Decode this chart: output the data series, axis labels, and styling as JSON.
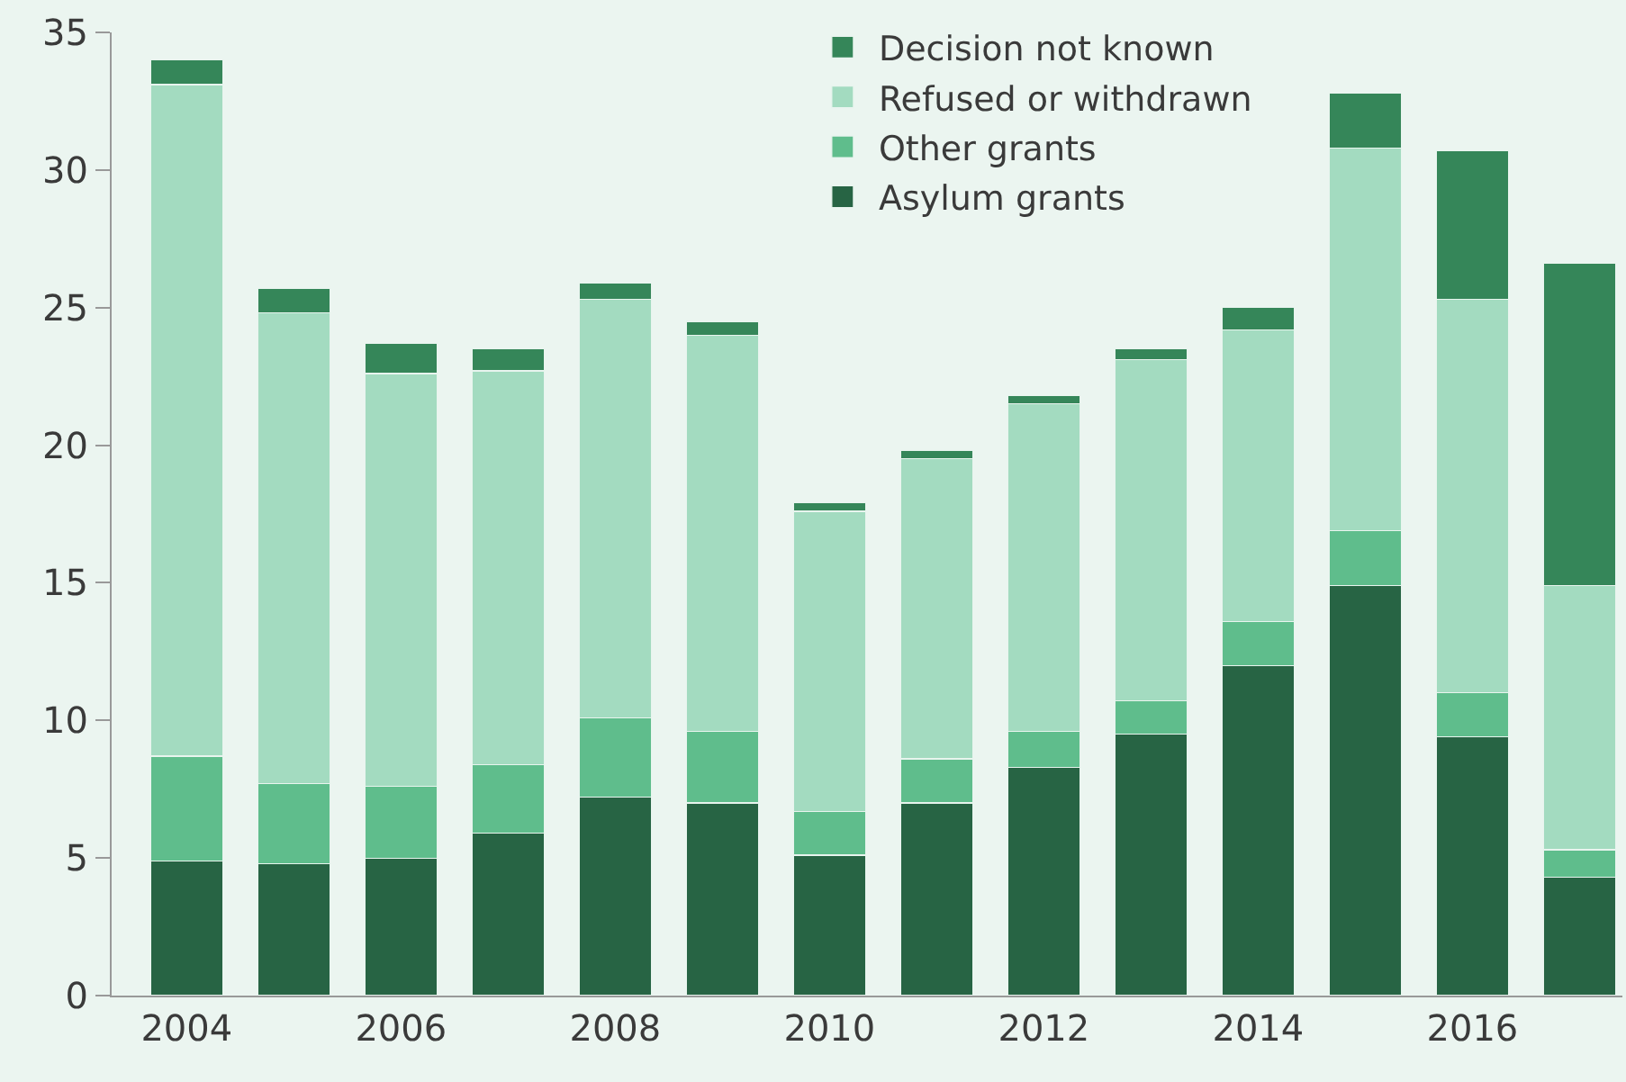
{
  "chart_data": {
    "type": "bar",
    "stacked": true,
    "x": [
      2004,
      2005,
      2006,
      2007,
      2008,
      2009,
      2010,
      2011,
      2012,
      2013,
      2014,
      2015,
      2016,
      2017
    ],
    "series": [
      {
        "name": "Asylum grants",
        "color": "#276444",
        "values": [
          4.9,
          4.8,
          5.0,
          5.9,
          7.2,
          7.0,
          5.1,
          7.0,
          8.3,
          9.5,
          12.0,
          14.9,
          9.4,
          4.3
        ]
      },
      {
        "name": "Other grants",
        "color": "#5fbd8c",
        "values": [
          3.8,
          2.9,
          2.6,
          2.5,
          2.9,
          2.6,
          1.6,
          1.6,
          1.3,
          1.2,
          1.6,
          2.0,
          1.6,
          1.0
        ]
      },
      {
        "name": "Refused or withdrawn",
        "color": "#a3dbc0",
        "values": [
          24.4,
          17.1,
          15.0,
          14.3,
          15.2,
          14.4,
          10.9,
          10.9,
          11.9,
          12.4,
          10.6,
          13.9,
          14.3,
          9.6
        ]
      },
      {
        "name": "Decision not known",
        "color": "#358659",
        "values": [
          0.9,
          0.9,
          1.1,
          0.8,
          0.6,
          0.5,
          0.3,
          0.3,
          0.3,
          0.4,
          0.8,
          2.0,
          5.4,
          11.7
        ]
      }
    ],
    "ylim": [
      0,
      35
    ],
    "yticks": [
      0,
      5,
      10,
      15,
      20,
      25,
      30,
      35
    ],
    "xlim": [
      2003.3,
      2017.4
    ],
    "xticks": [
      2004,
      2006,
      2008,
      2010,
      2012,
      2014,
      2016
    ],
    "grid": false,
    "legend": "top"
  }
}
